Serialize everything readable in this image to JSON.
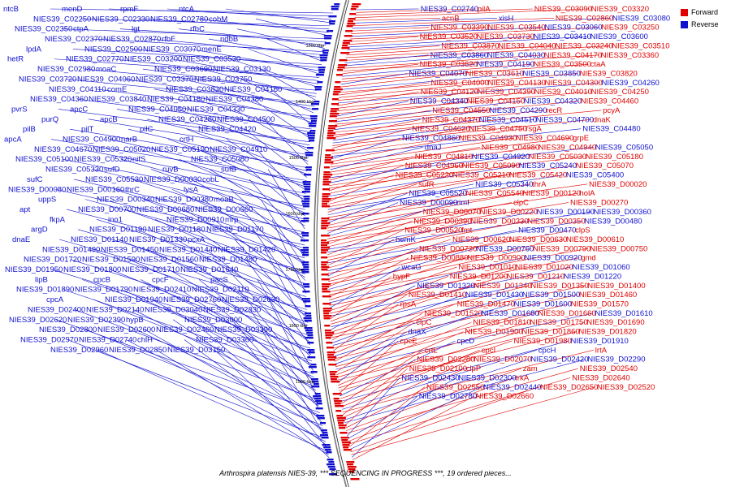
{
  "colors": {
    "forward": "#e00000",
    "reverse": "#1010d0",
    "backbone": "#777777"
  },
  "legend": [
    {
      "label": "Forward",
      "color": "#e00000"
    },
    {
      "label": "Reverse",
      "color": "#1010d0"
    }
  ],
  "caption": "Arthrospira platensis NIES-39, *** SEQUENCING IN PROGRESS ***, 19 ordered pieces...",
  "scale_labels": [
    "1300 kbp",
    "1400 kbp",
    "1500 kbp",
    "1600 kbp",
    "1700 kbp",
    "1800 kbp",
    "1900 kbp"
  ],
  "genes": {
    "left": [
      [
        "ntcB",
        "menD",
        "rpmF",
        "ntcA",
        "NIES39_C02250",
        "NIES39_C02330",
        "NIES39_C02780",
        "cobM",
        "NIES39_C02350",
        "ctpA",
        "lgt",
        "rfbC",
        "NIES39_C02370",
        "NIES39_C02870",
        "rfbF",
        "ndbB",
        "lpdA",
        "NIES39_C02500",
        "NIES39_C03070",
        "menE",
        "hetR",
        "NIES39_C02770",
        "NIES39_C03200",
        "NIES39_C03530",
        "NIES39_C02980",
        "moaC",
        "NIES39_C03690",
        "NIES39_C03130",
        "NIES39_C03720",
        "NIES39_C04060",
        "NIES39_C03370",
        "NIES39_C03750",
        "NIES39_C04110",
        "comE",
        "NIES39_C03830",
        "NIES39_C04160",
        "NIES39_C04360"
      ],
      [
        "NIES39_C03840",
        "NIES39_C04180",
        "NIES39_C04380",
        "pvrS",
        "apcC",
        "NIES39_C04050",
        "NIES39_C04330",
        "purQ",
        "apcB",
        "NIES39_C04280",
        "NIES39_C04500",
        "pilB",
        "pilT",
        "pilC",
        "NIES39_C04420",
        "apcA",
        "NIES39_C04900",
        "narB",
        "crtH",
        "NIES39_C04670",
        "NIES39_C05020",
        "NIES39_C05190",
        "NIES39_C04910",
        "NIES39_C05100",
        "NIES39_C05320",
        "nifS",
        "NIES39_C05080",
        "NIES39_C05330",
        "sufD",
        "ruvB",
        "sufB",
        "sufC",
        "NIES39_C05530",
        "NIES39_D00030",
        "cobL",
        "NIES39_D00080",
        "NIES39_D00160",
        "thrC",
        "lysA",
        "uppS",
        "NIES39_D00340",
        "NIES39_D00380",
        "moaB",
        "apt"
      ],
      [
        "NIES39_D00700",
        "NIES39_D00680",
        "NIES39_D00660",
        "fkpA",
        "ino1",
        "NIES39_D00910",
        "mrp",
        "argD",
        "NIES39_D01190",
        "NIES39_D01180",
        "NIES39_D01170",
        "dnaE",
        "NIES39_D01140",
        "NIES39_D01330",
        "pcxA",
        "NIES39_D01490",
        "NIES39_D01450",
        "NIES39_D01440",
        "NIES39_D01420",
        "NIES39_D01720",
        "NIES39_D01590",
        "NIES39_D01560",
        "NIES39_D01480",
        "NIES39_D01950",
        "NIES39_D01800",
        "NIES39_D01710",
        "NIES39_D01640",
        "lipB",
        "cpcB",
        "cpcF",
        "pacS",
        "NIES39_D01890",
        "NIES39_D01790"
      ],
      [
        "NIES39_D02410",
        "NIES39_D02110",
        "cpcA",
        "NIES39_D01940",
        "NIES39_D02760",
        "NIES39_D02630",
        "NIES39_D02400",
        "NIES39_D02140",
        "NIES39_D03040",
        "NIES39_D02830",
        "NIES39_D02620",
        "NIES39_D02390",
        "hypB",
        "NIES39_D03000",
        "NIES39_D02800",
        "NIES39_D02600",
        "NIES39_D02460",
        "NIES39_D03390",
        "NIES39_D02970",
        "NIES39_D02740",
        "chlH",
        "NIES39_D03360",
        "NIES39_D02960",
        "NIES39_D02850",
        "NIES39_D03150"
      ]
    ],
    "right": [
      [
        "NIES39_C02740",
        "pilA",
        "NIES39_C03090",
        "NIES39_C03320",
        "acnB",
        "xisH",
        "NIES39_C02860",
        "NIES39_C03080",
        "NIES39_C03390",
        "NIES39_C03540",
        "NIES39_C03060",
        "NIES39_C03250",
        "NIES39_C03520",
        "NIES39_C03730",
        "NIES39_C03410",
        "NIES39_C03600",
        "NIES39_C03870",
        "NIES39_C04040",
        "NIES39_C03240",
        "NIES39_C03510",
        "NIES39_C03860",
        "NIES39_C04030",
        "NIES39_C04170",
        "NIES39_C03360",
        "NIES39_C03620",
        "NIES39_C04190",
        "NIES39_C03500",
        "ctaA",
        "NIES39_C04070",
        "NIES39_C03610",
        "NIES39_C03850",
        "NIES39_C03820",
        "NIES39_C04000",
        "NIES39_C04130",
        "NIES39_C04300",
        "NIES39_C04260",
        "NIES39_C04120",
        "NIES39_C04390",
        "NIES39_C04010",
        "NIES39_C04250",
        "NIES39_C04340",
        "NIES39_C04150",
        "NIES39_C04320",
        "NIES39_C04460",
        "NIES39_C04550"
      ],
      [
        "NIES39_C04290",
        "recR",
        "pcyA",
        "NIES39_C04370",
        "NIES39_C04510",
        "NIES39_C04700",
        "dnaK",
        "NIES39_C04620",
        "NIES39_C04750",
        "rsgA",
        "NIES39_C04480",
        "NIES39_C04860",
        "NIES39_C04930",
        "NIES39_C04690",
        "grpE",
        "dnaJ",
        "NIES39_C04980",
        "NIES39_C04940",
        "NIES39_C05050",
        "NIES39_C04810",
        "NIES39_C04920",
        "NIES39_C05030",
        "NIES39_C05180",
        "NIES39_C04960",
        "NIES39_C05090",
        "NIES39_C05240",
        "NIES39_C05070",
        "NIES39_C05220",
        "NIES39_C05210",
        "NIES39_C05420",
        "NIES39_C05400",
        "sufR",
        "NIES39_C05340",
        "thrA",
        "NIES39_D00020",
        "NIES39_C05520",
        "NIES39_C05540",
        "NIES39_D00120",
        "holA",
        "NIES39_D00090",
        "rimI",
        "clpC",
        "NIES39_D00270",
        "NIES39_D00070",
        "NIES39_D00220",
        "NIES39_D00190",
        "NIES39_D00360",
        "NIES39_D00390"
      ],
      [
        "NIES39_D00330",
        "NIES39_D00350",
        "NIES39_D00480",
        "NIES39_D00520",
        "fmt",
        "NIES39_D00470",
        "clpS",
        "hemK",
        "NIES39_D00620",
        "NIES39_D00630",
        "NIES39_D00610",
        "NIES39_D00720",
        "NIES39_D00760",
        "NIES39_D00790",
        "NIES39_D00750",
        "NIES39_D00880",
        "NIES39_D00900",
        "NIES39_D00920",
        "gmd",
        "wcaG",
        "NIES39_D01010",
        "NIES39_D01020",
        "NIES39_D01060",
        "hypF",
        "NIES39_D01200",
        "NIES39_D01210",
        "NIES39_D01220",
        "NIES39_D01320",
        "NIES39_D01340",
        "NIES39_D01350",
        "NIES39_D01400",
        "NIES39_D01410",
        "NIES39_D01430",
        "NIES39_D01500",
        "NIES39_D01460",
        "rpsA",
        "NIES39_D01470"
      ],
      [
        "NIES39_D01600",
        "NIES39_D01570",
        "NIES39_D01520",
        "NIES39_D01680",
        "NIES39_D01660",
        "NIES39_D01610",
        "clpC",
        "NIES39_D01810",
        "NIES39_D01750",
        "NIES39_D01690",
        "dnaX",
        "NIES39_D01900",
        "NIES39_D01860",
        "NIES39_D01820",
        "cpcE",
        "cpcD",
        "NIES39_D01980",
        "NIES39_D01910",
        "crtL",
        "cpcI",
        "cpcH",
        "lrtA",
        "NIES39_D02280",
        "NIES39_D02070",
        "NIES39_D02420",
        "NIES39_D02290",
        "NIES39_D02100",
        "clpP",
        "zam",
        "NIES39_D02540",
        "NIES39_D02430",
        "NIES39_D02300",
        "trkA",
        "NIES39_D02640",
        "NIES39_D02550",
        "NIES39_D02440",
        "NIES39_D02650",
        "NIES39_D02520",
        "NIES39_D02780",
        "NIES39_D02660"
      ]
    ]
  }
}
